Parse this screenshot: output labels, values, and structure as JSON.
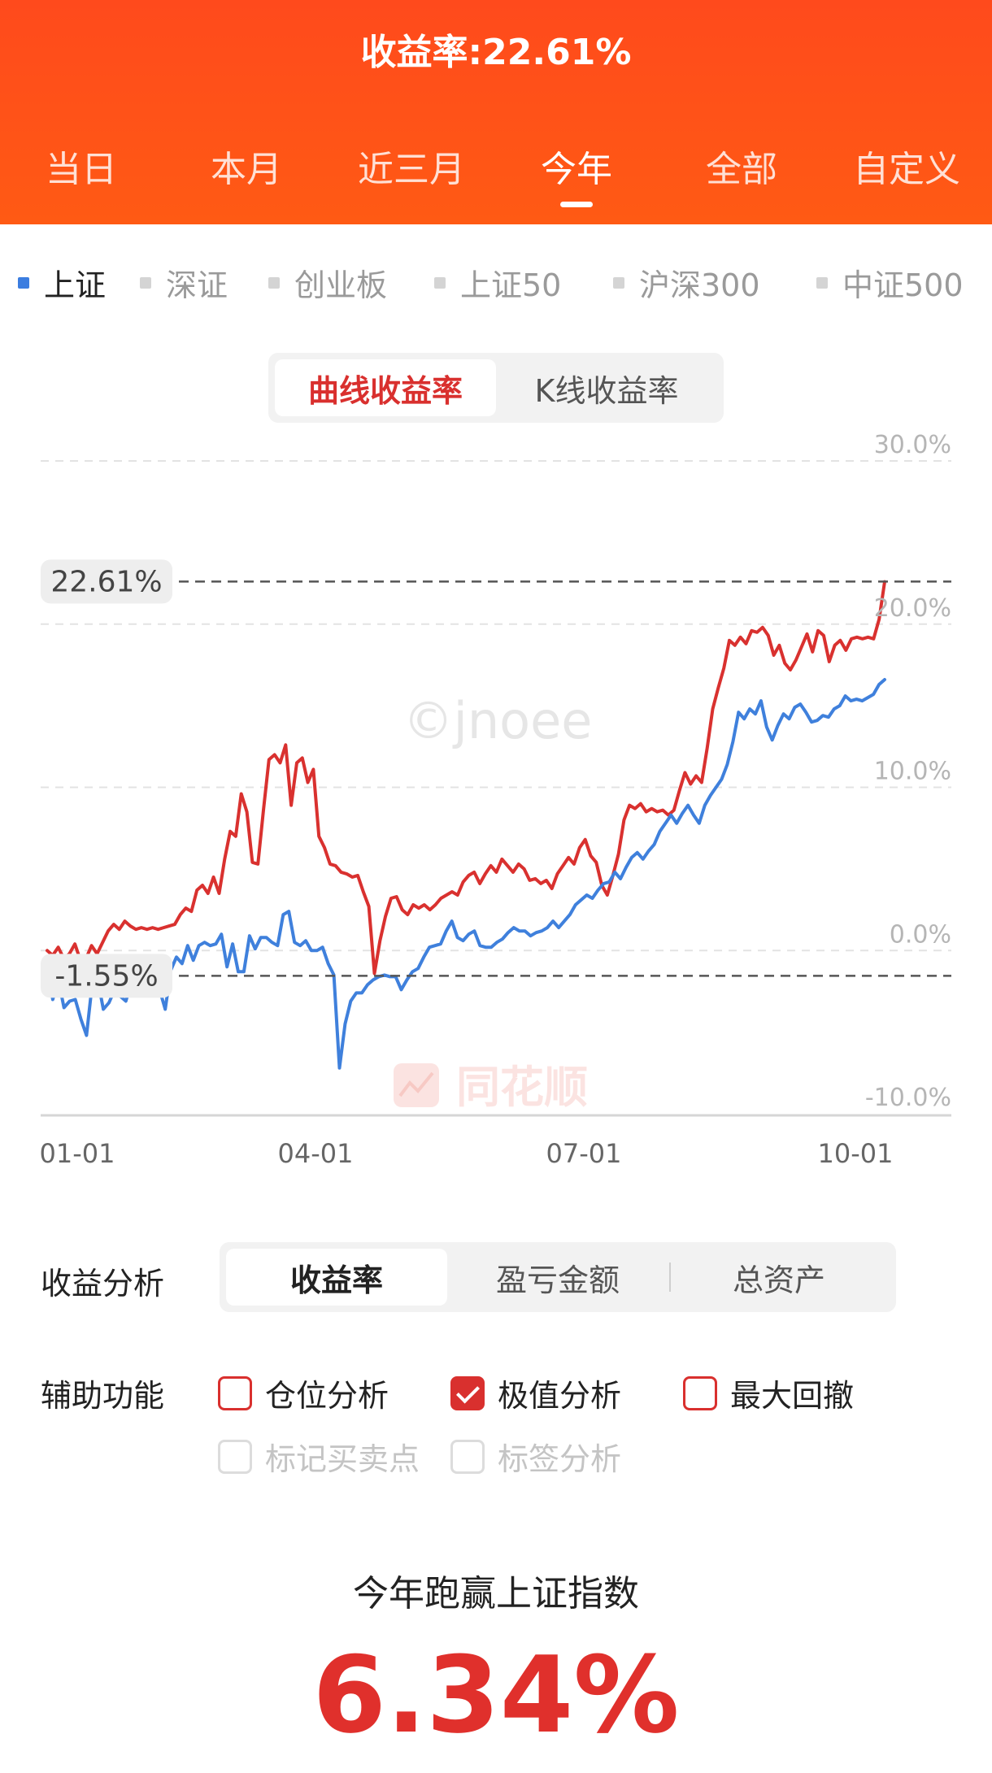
{
  "header": {
    "title": "收益率:22.61%",
    "period_tabs": [
      {
        "label": "当日",
        "active": false
      },
      {
        "label": "本月",
        "active": false
      },
      {
        "label": "近三月",
        "active": false
      },
      {
        "label": "今年",
        "active": true
      },
      {
        "label": "全部",
        "active": false
      },
      {
        "label": "自定义",
        "active": false
      }
    ]
  },
  "indices": [
    {
      "label": "上证",
      "active": true
    },
    {
      "label": "深证",
      "active": false
    },
    {
      "label": "创业板",
      "active": false
    },
    {
      "label": "上证50",
      "active": false
    },
    {
      "label": "沪深300",
      "active": false
    },
    {
      "label": "中证500",
      "active": false
    }
  ],
  "chart_toggle": {
    "options": [
      "曲线收益率",
      "K线收益率"
    ],
    "active_index": 0
  },
  "chart_data": {
    "type": "line",
    "x_ticks": [
      "01-01",
      "04-01",
      "07-01",
      "10-01"
    ],
    "y_ticks": [
      "30.0%",
      "20.0%",
      "10.0%",
      "0.0%",
      "-10.0%"
    ],
    "ylim": [
      -10,
      30
    ],
    "grid": true,
    "colors": {
      "portfolio": "#d9312f",
      "index": "#3f80dc"
    },
    "max_marker": {
      "label": "22.61%",
      "value": 22.61
    },
    "min_marker": {
      "label": "-1.55%",
      "value": -1.55
    },
    "series": [
      {
        "key": "portfolio",
        "values": [
          0,
          -0.3,
          0.2,
          -0.5,
          -0.2,
          0.4,
          -0.6,
          -0.5,
          0.3,
          -0.2,
          0.5,
          1.2,
          1.6,
          1.3,
          1.8,
          1.5,
          1.3,
          1.4,
          1.3,
          1.4,
          1.3,
          1.4,
          1.5,
          1.6,
          2.2,
          2.6,
          2.4,
          3.7,
          4,
          3.5,
          4.5,
          3.5,
          5.6,
          7.3,
          7,
          9.6,
          8.5,
          5.4,
          5.3,
          8.6,
          11.7,
          12,
          11.5,
          12.6,
          8.9,
          11.5,
          11.8,
          10.3,
          11.1,
          7,
          6.3,
          5.3,
          5.2,
          4.8,
          4.7,
          4.5,
          4.6,
          3.6,
          2.7,
          -1.4,
          0.6,
          2.1,
          3.2,
          3.3,
          2.5,
          2.2,
          2.8,
          2.6,
          2.8,
          2.5,
          2.8,
          3.2,
          3.4,
          3.6,
          3.4,
          4.2,
          4.6,
          4.8,
          4.1,
          4.7,
          5.2,
          4.8,
          5.6,
          5.2,
          4.8,
          5.3,
          5,
          4.3,
          4.4,
          4.1,
          4.3,
          3.8,
          4.7,
          5.2,
          5.7,
          5.3,
          6.3,
          6.8,
          5.8,
          5.4,
          4,
          3.4,
          4.6,
          5.9,
          8,
          8.9,
          8.7,
          9,
          8.5,
          8.7,
          8.5,
          8.6,
          8.3,
          8.6,
          9.8,
          10.9,
          10.2,
          10.7,
          10.3,
          12.4,
          14.8,
          16.1,
          17.3,
          19,
          18.7,
          19.2,
          18.8,
          19.6,
          19.5,
          19.8,
          19.3,
          18.1,
          18.7,
          17.6,
          17.2,
          17.8,
          18.6,
          19.4,
          18.3,
          19.6,
          19.3,
          17.7,
          18.7,
          19,
          18.4,
          19.1,
          19.2,
          19.1,
          19.2,
          19.1,
          20.3,
          22.6
        ]
      },
      {
        "key": "index",
        "values": [
          -0.9,
          -3,
          -1.8,
          -3.5,
          -3.1,
          -3,
          -4.2,
          -5.2,
          -2.1,
          -1.8,
          -3.6,
          -3.2,
          -2.4,
          -2.8,
          -3.1,
          -1.9,
          -2.3,
          -2.7,
          -2.1,
          -1.8,
          -2.4,
          -3.6,
          -1.2,
          -0.4,
          -0.8,
          0.3,
          -0.6,
          0.3,
          0.5,
          0.3,
          0.4,
          1,
          -1,
          0.4,
          -1.3,
          -1.3,
          0.9,
          0.1,
          0.8,
          0.8,
          0.5,
          0.3,
          2.2,
          2.4,
          0.5,
          0.3,
          0.6,
          0,
          0,
          0.2,
          -0.8,
          -1.5,
          -7.2,
          -4.5,
          -3.1,
          -2.6,
          -2.6,
          -2.1,
          -1.8,
          -1.6,
          -1.5,
          -1.6,
          -1.6,
          -2.4,
          -1.8,
          -1.3,
          -1.1,
          -0.4,
          0.2,
          0.3,
          0.4,
          1.2,
          1.8,
          0.8,
          0.6,
          1,
          1.2,
          0.3,
          0.2,
          0.2,
          0.5,
          0.7,
          1.1,
          1.4,
          1.2,
          1.2,
          0.9,
          1.1,
          1.2,
          1.4,
          1.8,
          1.4,
          1.8,
          2.2,
          2.8,
          3.1,
          3.4,
          3.2,
          3.7,
          4.1,
          4.2,
          4.8,
          4.4,
          5.1,
          5.7,
          6,
          5.6,
          6.1,
          6.5,
          7.3,
          7.8,
          8.3,
          7.8,
          8.4,
          8.9,
          8.3,
          7.8,
          8.9,
          9.5,
          10,
          10.5,
          11.4,
          12.8,
          14.6,
          14.2,
          14.8,
          14.5,
          15.3,
          13.7,
          12.9,
          13.8,
          14.5,
          14.2,
          14.9,
          15.1,
          14.6,
          14,
          14.1,
          14.4,
          14.3,
          14.8,
          15,
          15.6,
          15.3,
          15.4,
          15.3,
          15.5,
          15.7,
          16.3,
          16.6
        ]
      }
    ]
  },
  "analysis": {
    "label": "收益分析",
    "options": [
      "收益率",
      "盈亏金额",
      "总资产"
    ],
    "active_index": 0
  },
  "aux": {
    "label": "辅助功能",
    "options": [
      {
        "label": "仓位分析",
        "checked": false,
        "enabled": true
      },
      {
        "label": "极值分析",
        "checked": true,
        "enabled": true
      },
      {
        "label": "最大回撤",
        "checked": false,
        "enabled": true
      },
      {
        "label": "标记买卖点",
        "checked": false,
        "enabled": false
      },
      {
        "label": "标签分析",
        "checked": false,
        "enabled": false
      }
    ]
  },
  "summary": {
    "title": "今年跑赢上证指数",
    "value": "6.34%"
  },
  "watermarks": {
    "text": "©jnoee",
    "brand": "同花顺",
    "brand_icon": "chart-logo-icon"
  }
}
